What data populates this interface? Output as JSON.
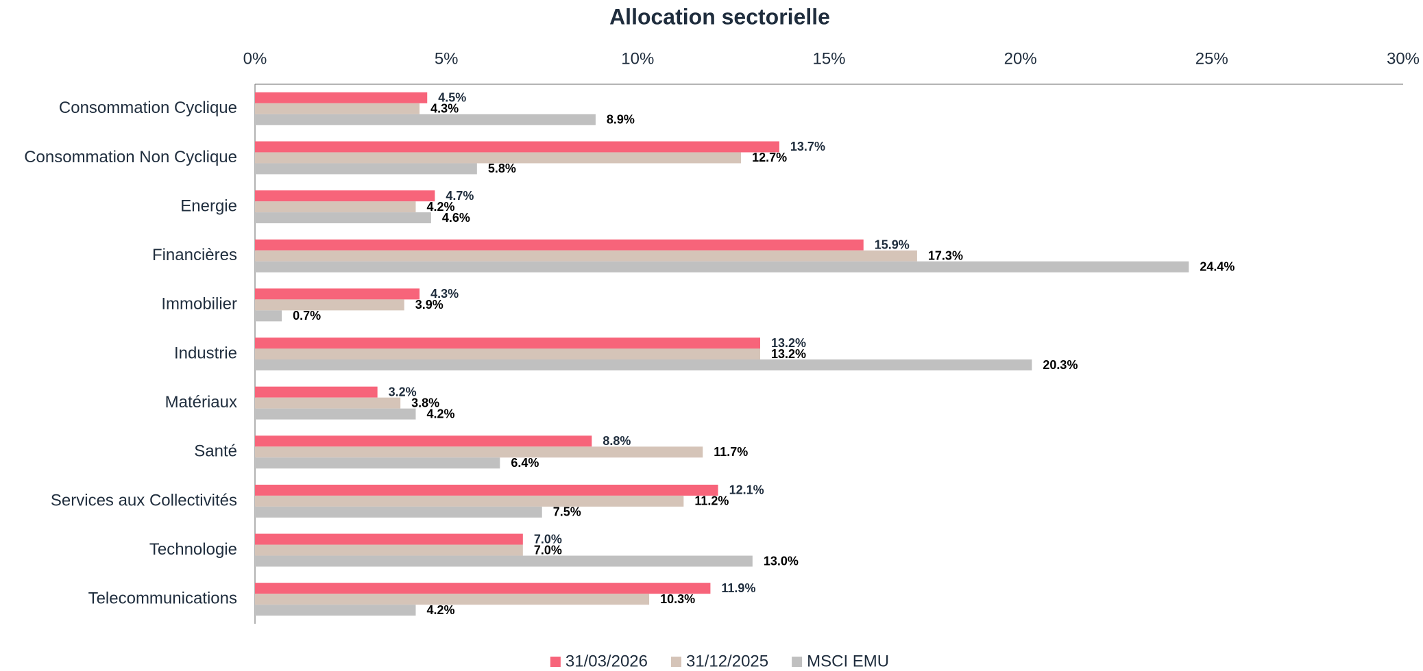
{
  "chart_data": {
    "type": "hbar",
    "title": "Allocation sectorielle",
    "categories": [
      "Consommation Cyclique",
      "Consommation Non Cyclique",
      "Energie",
      "Financières",
      "Immobilier",
      "Industrie",
      "Matériaux",
      "Santé",
      "Services aux Collectivités",
      "Technologie",
      "Telecommunications"
    ],
    "series": [
      {
        "name": "31/03/2026",
        "color": "#f7647a",
        "values": [
          4.5,
          13.7,
          4.7,
          15.9,
          4.3,
          13.2,
          3.2,
          8.8,
          12.1,
          7.0,
          11.9
        ],
        "value_labels": [
          "4.5%",
          "13.7%",
          "4.7%",
          "15.9%",
          "4.3%",
          "13.2%",
          "3.2%",
          "8.8%",
          "12.1%",
          "7.0%",
          "11.9%"
        ]
      },
      {
        "name": "31/12/2025",
        "color": "#d5c4b8",
        "values": [
          4.3,
          12.7,
          4.2,
          17.3,
          3.9,
          13.2,
          3.8,
          11.7,
          11.2,
          7.0,
          10.3
        ],
        "value_labels": [
          "4.3%",
          "12.7%",
          "4.2%",
          "17.3%",
          "3.9%",
          "13.2%",
          "3.8%",
          "11.7%",
          "11.2%",
          "7.0%",
          "10.3%"
        ]
      },
      {
        "name": "MSCI EMU",
        "color": "#c0c0c0",
        "values": [
          8.9,
          5.8,
          4.6,
          24.4,
          0.7,
          20.3,
          4.2,
          6.4,
          7.5,
          13.0,
          4.2
        ],
        "value_labels": [
          "8.9%",
          "5.8%",
          "4.6%",
          "24.4%",
          "0.7%",
          "20.3%",
          "4.2%",
          "6.4%",
          "7.5%",
          "13.0%",
          "4.2%"
        ]
      }
    ],
    "xlim": [
      0,
      30
    ],
    "xticks": [
      {
        "value": 0,
        "label": "0%"
      },
      {
        "value": 5,
        "label": "5%"
      },
      {
        "value": 10,
        "label": "10%"
      },
      {
        "value": 15,
        "label": "15%"
      },
      {
        "value": 20,
        "label": "20%"
      },
      {
        "value": 25,
        "label": "25%"
      },
      {
        "value": 30,
        "label": "30%"
      }
    ],
    "grid": false,
    "legend": "bottom"
  }
}
